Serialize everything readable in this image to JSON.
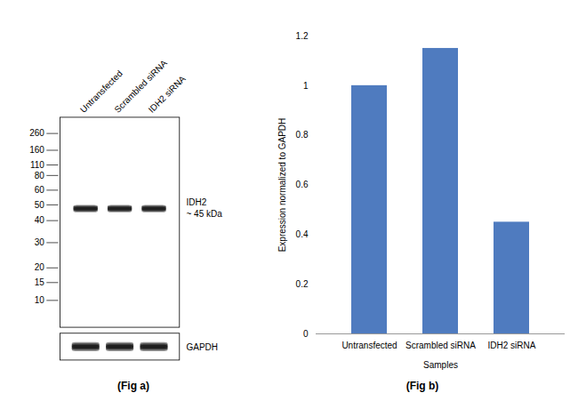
{
  "chart_data": [
    {
      "type": "western_blot",
      "caption": "(Fig a)",
      "lanes": [
        "Untransfected",
        "Scrambled siRNA",
        "IDH2 siRNA"
      ],
      "ladder": [
        260,
        160,
        110,
        80,
        60,
        50,
        40,
        30,
        20,
        15,
        10
      ],
      "bands": [
        {
          "name": "IDH2",
          "label": "~ 45 kDa"
        },
        {
          "name": "GAPDH"
        }
      ],
      "color": "#1a1a1a"
    },
    {
      "type": "bar",
      "caption": "(Fig b)",
      "categories": [
        "Untransfected",
        "Scrambled siRNA",
        "IDH2 siRNA"
      ],
      "values": [
        1.0,
        1.15,
        0.45
      ],
      "color": "#4f7bbf",
      "xlabel": "Samples",
      "ylabel": "Expression normalized to GAPDH",
      "ylim": [
        0,
        1.2
      ],
      "yticks": [
        0,
        0.2,
        0.4,
        0.6,
        0.8,
        1,
        1.2
      ],
      "grid": false
    }
  ]
}
